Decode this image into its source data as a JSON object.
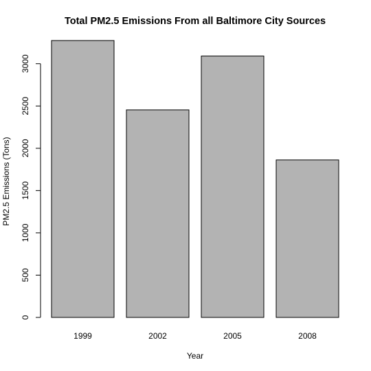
{
  "chart_data": {
    "type": "bar",
    "title": "Total PM2.5 Emissions From all Baltimore City Sources",
    "xlabel": "Year",
    "ylabel": "PM2.5 Emissions (Tons)",
    "categories": [
      "1999",
      "2002",
      "2005",
      "2008"
    ],
    "values": [
      3274,
      2454,
      3091,
      1862
    ],
    "ylim": [
      0,
      3274
    ],
    "yticks": [
      0,
      500,
      1000,
      1500,
      2000,
      2500,
      3000
    ],
    "grid": false,
    "legend": "none",
    "colors": {
      "bar_fill": "#b3b3b3",
      "bar_border": "#000000",
      "text": "#000000"
    }
  }
}
